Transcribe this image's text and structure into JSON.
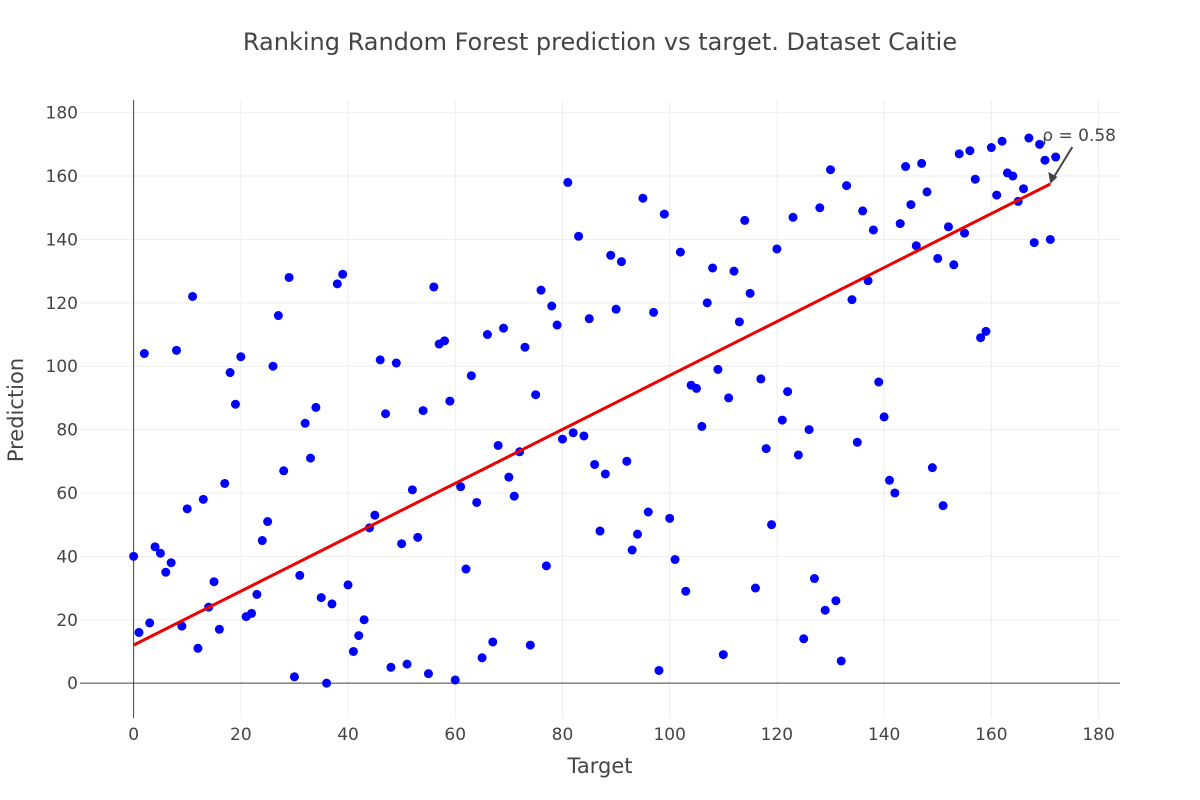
{
  "chart_data": {
    "type": "scatter",
    "title": "Ranking Random Forest prediction vs target. Dataset Caitie",
    "xlabel": "Target",
    "ylabel": "Prediction",
    "xlim": [
      -10,
      184
    ],
    "ylim": [
      -11,
      184
    ],
    "xticks": [
      0,
      20,
      40,
      60,
      80,
      100,
      120,
      140,
      160,
      180
    ],
    "yticks": [
      0,
      20,
      40,
      60,
      80,
      100,
      120,
      140,
      160,
      180
    ],
    "grid": true,
    "colors": {
      "points": "#0000ff",
      "fit_line": "#ee0000",
      "text": "#444444"
    },
    "series": [
      {
        "points": [
          [
            0,
            40
          ],
          [
            1,
            16
          ],
          [
            2,
            104
          ],
          [
            3,
            19
          ],
          [
            4,
            43
          ],
          [
            5,
            41
          ],
          [
            6,
            35
          ],
          [
            7,
            38
          ],
          [
            8,
            105
          ],
          [
            9,
            18
          ],
          [
            10,
            55
          ],
          [
            11,
            122
          ],
          [
            12,
            11
          ],
          [
            13,
            58
          ],
          [
            14,
            24
          ],
          [
            15,
            32
          ],
          [
            16,
            17
          ],
          [
            17,
            63
          ],
          [
            18,
            98
          ],
          [
            19,
            88
          ],
          [
            20,
            103
          ],
          [
            21,
            21
          ],
          [
            22,
            22
          ],
          [
            23,
            28
          ],
          [
            24,
            45
          ],
          [
            25,
            51
          ],
          [
            26,
            100
          ],
          [
            27,
            116
          ],
          [
            28,
            67
          ],
          [
            29,
            128
          ],
          [
            30,
            2
          ],
          [
            31,
            34
          ],
          [
            32,
            82
          ],
          [
            33,
            71
          ],
          [
            34,
            87
          ],
          [
            35,
            27
          ],
          [
            36,
            0
          ],
          [
            37,
            25
          ],
          [
            38,
            126
          ],
          [
            39,
            129
          ],
          [
            40,
            31
          ],
          [
            41,
            10
          ],
          [
            42,
            15
          ],
          [
            43,
            20
          ],
          [
            44,
            49
          ],
          [
            45,
            53
          ],
          [
            46,
            102
          ],
          [
            47,
            85
          ],
          [
            48,
            5
          ],
          [
            49,
            101
          ],
          [
            50,
            44
          ],
          [
            51,
            6
          ],
          [
            52,
            61
          ],
          [
            53,
            46
          ],
          [
            54,
            86
          ],
          [
            55,
            3
          ],
          [
            56,
            125
          ],
          [
            57,
            107
          ],
          [
            58,
            108
          ],
          [
            59,
            89
          ],
          [
            60,
            1
          ],
          [
            61,
            62
          ],
          [
            62,
            36
          ],
          [
            63,
            97
          ],
          [
            64,
            57
          ],
          [
            65,
            8
          ],
          [
            66,
            110
          ],
          [
            67,
            13
          ],
          [
            68,
            75
          ],
          [
            69,
            112
          ],
          [
            70,
            65
          ],
          [
            71,
            59
          ],
          [
            72,
            73
          ],
          [
            73,
            106
          ],
          [
            74,
            12
          ],
          [
            75,
            91
          ],
          [
            76,
            124
          ],
          [
            77,
            37
          ],
          [
            78,
            119
          ],
          [
            79,
            113
          ],
          [
            80,
            77
          ],
          [
            81,
            158
          ],
          [
            82,
            79
          ],
          [
            83,
            141
          ],
          [
            84,
            78
          ],
          [
            85,
            115
          ],
          [
            86,
            69
          ],
          [
            87,
            48
          ],
          [
            88,
            66
          ],
          [
            89,
            135
          ],
          [
            90,
            118
          ],
          [
            91,
            133
          ],
          [
            92,
            70
          ],
          [
            93,
            42
          ],
          [
            94,
            47
          ],
          [
            95,
            153
          ],
          [
            96,
            54
          ],
          [
            97,
            117
          ],
          [
            98,
            4
          ],
          [
            99,
            148
          ],
          [
            100,
            52
          ],
          [
            101,
            39
          ],
          [
            102,
            136
          ],
          [
            103,
            29
          ],
          [
            104,
            94
          ],
          [
            105,
            93
          ],
          [
            106,
            81
          ],
          [
            107,
            120
          ],
          [
            108,
            131
          ],
          [
            109,
            99
          ],
          [
            110,
            9
          ],
          [
            111,
            90
          ],
          [
            112,
            130
          ],
          [
            113,
            114
          ],
          [
            114,
            146
          ],
          [
            115,
            123
          ],
          [
            116,
            30
          ],
          [
            117,
            96
          ],
          [
            118,
            74
          ],
          [
            119,
            50
          ],
          [
            120,
            137
          ],
          [
            121,
            83
          ],
          [
            122,
            92
          ],
          [
            123,
            147
          ],
          [
            124,
            72
          ],
          [
            125,
            14
          ],
          [
            126,
            80
          ],
          [
            127,
            33
          ],
          [
            128,
            150
          ],
          [
            129,
            23
          ],
          [
            130,
            162
          ],
          [
            131,
            26
          ],
          [
            132,
            7
          ],
          [
            133,
            157
          ],
          [
            134,
            121
          ],
          [
            135,
            76
          ],
          [
            136,
            149
          ],
          [
            137,
            127
          ],
          [
            138,
            143
          ],
          [
            139,
            95
          ],
          [
            140,
            84
          ],
          [
            141,
            64
          ],
          [
            142,
            60
          ],
          [
            143,
            145
          ],
          [
            144,
            163
          ],
          [
            145,
            151
          ],
          [
            146,
            138
          ],
          [
            147,
            164
          ],
          [
            148,
            155
          ],
          [
            149,
            68
          ],
          [
            150,
            134
          ],
          [
            151,
            56
          ],
          [
            152,
            144
          ],
          [
            153,
            132
          ],
          [
            154,
            167
          ],
          [
            155,
            142
          ],
          [
            156,
            168
          ],
          [
            157,
            159
          ],
          [
            158,
            109
          ],
          [
            159,
            111
          ],
          [
            160,
            169
          ],
          [
            161,
            154
          ],
          [
            162,
            171
          ],
          [
            163,
            161
          ],
          [
            164,
            160
          ],
          [
            165,
            152
          ],
          [
            166,
            156
          ],
          [
            167,
            172
          ],
          [
            168,
            139
          ],
          [
            169,
            170
          ],
          [
            170,
            165
          ],
          [
            171,
            140
          ],
          [
            172,
            166
          ]
        ]
      }
    ],
    "fit_line": {
      "x": [
        0,
        171
      ],
      "y": [
        12,
        157.5
      ]
    },
    "annotations": [
      {
        "text": "ρ = 0.58",
        "x": 171,
        "y": 157.5
      }
    ]
  }
}
